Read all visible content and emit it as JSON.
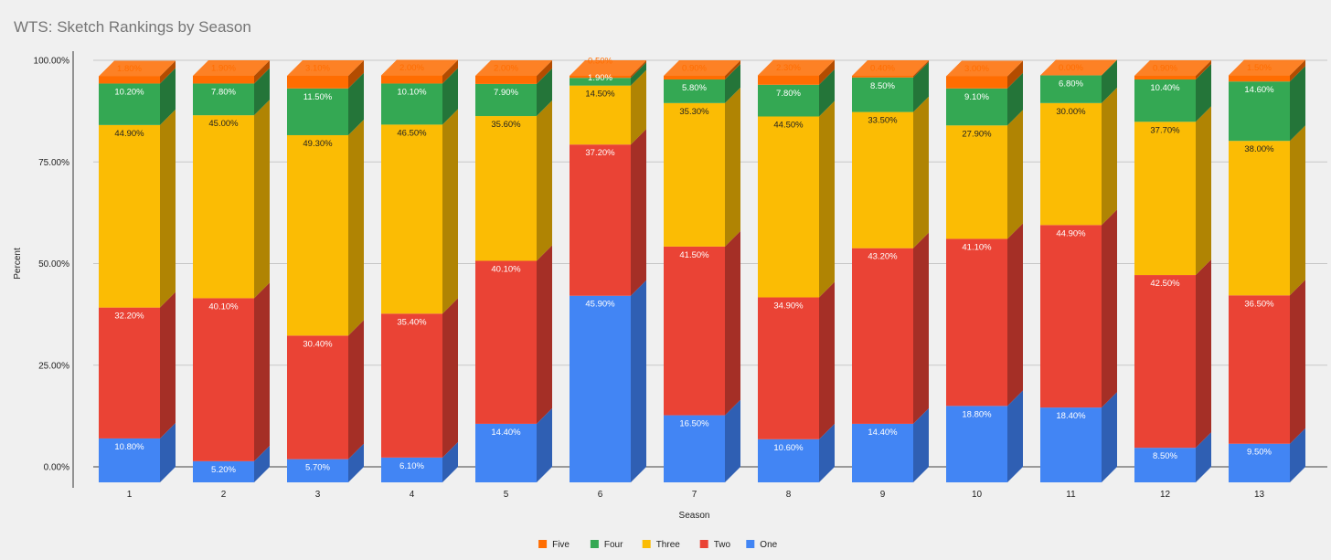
{
  "chart_data": {
    "type": "bar",
    "stacked": true,
    "three_d": true,
    "title": "WTS: Sketch Rankings by Season",
    "xlabel": "Season",
    "ylabel": "Percent",
    "ylim": [
      0,
      100
    ],
    "yticks": [
      "0.00%",
      "25.00%",
      "50.00%",
      "75.00%",
      "100.00%"
    ],
    "ytick_values": [
      0,
      25,
      50,
      75,
      100
    ],
    "categories": [
      "1",
      "2",
      "3",
      "4",
      "5",
      "6",
      "7",
      "8",
      "9",
      "10",
      "11",
      "12",
      "13"
    ],
    "legend_position": "bottom",
    "series": [
      {
        "name": "One",
        "color": "#4285f4",
        "side_color": "#2f5fb3",
        "label_color": "#ffffff",
        "values": [
          10.8,
          5.2,
          5.7,
          6.1,
          14.4,
          45.9,
          16.5,
          10.6,
          14.4,
          18.8,
          18.4,
          8.5,
          9.5
        ],
        "labels": [
          "10.80%",
          "5.20%",
          "5.70%",
          "6.10%",
          "14.40%",
          "45.90%",
          "16.50%",
          "10.60%",
          "14.40%",
          "18.80%",
          "18.40%",
          "8.50%",
          "9.50%"
        ]
      },
      {
        "name": "Two",
        "color": "#ea4335",
        "side_color": "#a52f26",
        "label_color": "#ffffff",
        "values": [
          32.2,
          40.1,
          30.4,
          35.4,
          40.1,
          37.2,
          41.5,
          34.9,
          43.2,
          41.1,
          44.9,
          42.5,
          36.5
        ],
        "labels": [
          "32.20%",
          "40.10%",
          "30.40%",
          "35.40%",
          "40.10%",
          "37.20%",
          "41.50%",
          "34.90%",
          "43.20%",
          "41.10%",
          "44.90%",
          "42.50%",
          "36.50%"
        ]
      },
      {
        "name": "Three",
        "color": "#fbbc04",
        "side_color": "#b08403",
        "label_color": "#222222",
        "values": [
          44.9,
          45.0,
          49.3,
          46.5,
          35.6,
          14.5,
          35.3,
          44.5,
          33.5,
          27.9,
          30.0,
          37.7,
          38.0
        ],
        "labels": [
          "44.90%",
          "45.00%",
          "49.30%",
          "46.50%",
          "35.60%",
          "14.50%",
          "35.30%",
          "44.50%",
          "33.50%",
          "27.90%",
          "30.00%",
          "37.70%",
          "38.00%"
        ]
      },
      {
        "name": "Four",
        "color": "#34a853",
        "side_color": "#247539",
        "label_color": "#ffffff",
        "values": [
          10.2,
          7.8,
          11.5,
          10.1,
          7.9,
          1.9,
          5.8,
          7.8,
          8.5,
          9.1,
          6.8,
          10.4,
          14.6
        ],
        "labels": [
          "10.20%",
          "7.80%",
          "11.50%",
          "10.10%",
          "7.90%",
          "1.90%",
          "5.80%",
          "7.80%",
          "8.50%",
          "9.10%",
          "6.80%",
          "10.40%",
          "14.60%"
        ]
      },
      {
        "name": "Five",
        "color": "#ff6d01",
        "side_color": "#b34c00",
        "label_color": "#ff6d01",
        "values": [
          1.8,
          1.9,
          3.1,
          2.0,
          2.0,
          0.5,
          0.9,
          2.3,
          0.4,
          3.0,
          0.0,
          0.9,
          1.5
        ],
        "labels": [
          "1.80%",
          "1.90%",
          "3.10%",
          "2.00%",
          "2.00%",
          "0.50%",
          "0.90%",
          "2.30%",
          "0.40%",
          "3.00%",
          "0.00%",
          "0.90%",
          "1.50%"
        ]
      }
    ]
  }
}
